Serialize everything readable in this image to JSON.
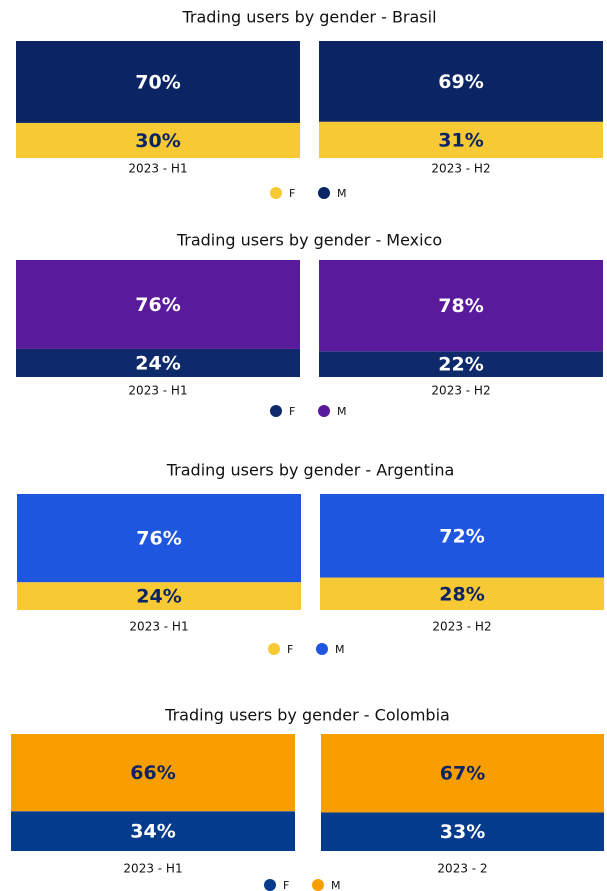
{
  "chart_data": [
    {
      "type": "bar",
      "stacked": true,
      "title": "Trading users by gender - Brasil",
      "categories": [
        "2023 - H1",
        "2023 - H2"
      ],
      "ylim": [
        0,
        100
      ],
      "series": [
        {
          "name": "F",
          "color": "#f7c934",
          "values": [
            30,
            31
          ],
          "value_labels": [
            "30%",
            "31%"
          ]
        },
        {
          "name": "M",
          "color": "#0b2463",
          "values": [
            70,
            69
          ],
          "value_labels": [
            "70%",
            "69%"
          ]
        }
      ]
    },
    {
      "type": "bar",
      "stacked": true,
      "title": "Trading users by gender - Mexico",
      "categories": [
        "2023 - H1",
        "2023 - H2"
      ],
      "ylim": [
        0,
        100
      ],
      "series": [
        {
          "name": "F",
          "color": "#0e2a6b",
          "values": [
            24,
            22
          ],
          "value_labels": [
            "24%",
            "22%"
          ]
        },
        {
          "name": "M",
          "color": "#5a1a9c",
          "values": [
            76,
            78
          ],
          "value_labels": [
            "76%",
            "78%"
          ]
        }
      ]
    },
    {
      "type": "bar",
      "stacked": true,
      "title": "Trading users by gender - Argentina",
      "categories": [
        "2023 - H1",
        "2023 - H2"
      ],
      "ylim": [
        0,
        100
      ],
      "series": [
        {
          "name": "F",
          "color": "#f7c934",
          "values": [
            24,
            28
          ],
          "value_labels": [
            "24%",
            "28%"
          ]
        },
        {
          "name": "M",
          "color": "#1f56e0",
          "values": [
            76,
            72
          ],
          "value_labels": [
            "76%",
            "72%"
          ]
        }
      ]
    },
    {
      "type": "bar",
      "stacked": true,
      "title": "Trading users by gender - Colombia",
      "categories": [
        "2023 - H1",
        "2023 - 2"
      ],
      "ylim": [
        0,
        100
      ],
      "series": [
        {
          "name": "F",
          "color": "#053b8c",
          "values": [
            34,
            33
          ],
          "value_labels": [
            "34%",
            "33%"
          ]
        },
        {
          "name": "M",
          "color": "#f99e00",
          "values": [
            66,
            67
          ],
          "value_labels": [
            "66%",
            "67%"
          ]
        }
      ]
    }
  ]
}
